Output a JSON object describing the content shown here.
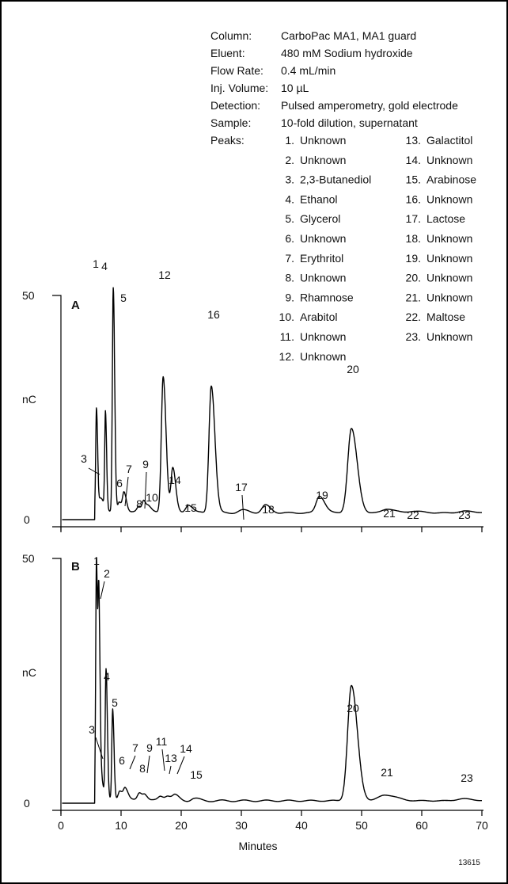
{
  "conditions": [
    {
      "label": "Column:",
      "value": "CarboPac MA1, MA1 guard"
    },
    {
      "label": "Eluent:",
      "value": "480 mM Sodium hydroxide"
    },
    {
      "label": "Flow Rate:",
      "value": "0.4 mL/min"
    },
    {
      "label": "Inj. Volume:",
      "value": "10 µL"
    },
    {
      "label": "Detection:",
      "value": "Pulsed amperometry, gold electrode"
    },
    {
      "label": "Sample:",
      "value": "10-fold dilution, supernatant"
    }
  ],
  "peaks_label": "Peaks:",
  "peaks": [
    {
      "n": "1.",
      "name": "Unknown"
    },
    {
      "n": "2.",
      "name": "Unknown"
    },
    {
      "n": "3.",
      "name": "2,3-Butanediol"
    },
    {
      "n": "4.",
      "name": "Ethanol"
    },
    {
      "n": "5.",
      "name": "Glycerol"
    },
    {
      "n": "6.",
      "name": "Unknown"
    },
    {
      "n": "7.",
      "name": "Erythritol"
    },
    {
      "n": "8.",
      "name": "Unknown"
    },
    {
      "n": "9.",
      "name": "Rhamnose"
    },
    {
      "n": "10.",
      "name": "Arabitol"
    },
    {
      "n": "11.",
      "name": "Unknown"
    },
    {
      "n": "12.",
      "name": "Unknown"
    },
    {
      "n": "13.",
      "name": "Galactitol"
    },
    {
      "n": "14.",
      "name": "Unknown"
    },
    {
      "n": "15.",
      "name": "Arabinose"
    },
    {
      "n": "16.",
      "name": "Unknown"
    },
    {
      "n": "17.",
      "name": "Lactose"
    },
    {
      "n": "18.",
      "name": "Unknown"
    },
    {
      "n": "19.",
      "name": "Unknown"
    },
    {
      "n": "20.",
      "name": "Unknown"
    },
    {
      "n": "21.",
      "name": "Unknown"
    },
    {
      "n": "22.",
      "name": "Maltose"
    },
    {
      "n": "23.",
      "name": "Unknown"
    }
  ],
  "figure_id": "13615",
  "chart_data": [
    {
      "type": "line",
      "panel": "A",
      "xlabel": "Minutes",
      "ylabel": "nC",
      "xlim": [
        0,
        70
      ],
      "ylim": [
        0,
        50
      ],
      "x_ticks": [
        "0",
        "10",
        "20",
        "30",
        "40",
        "50",
        "60",
        "70"
      ],
      "y_ticks": [
        "0",
        "50"
      ],
      "baseline": 1.5,
      "series": [
        {
          "peaks": [
            {
              "label": "1",
              "rt": 5.9,
              "height": 22.5,
              "width": 0.12
            },
            {
              "label": "3",
              "rt": 6.6,
              "height": 3.6,
              "width": 0.35
            },
            {
              "label": "4",
              "rt": 7.4,
              "height": 21.5,
              "width": 0.12
            },
            {
              "label": "5",
              "rt": 8.7,
              "height": 50,
              "width": 0.15
            },
            {
              "label": "6",
              "rt": 9.7,
              "height": 2.6,
              "width": 0.25
            },
            {
              "label": "7",
              "rt": 10.5,
              "height": 4.6,
              "width": 0.25
            },
            {
              "label": "8",
              "rt": 13.0,
              "height": 1.5,
              "width": 0.35
            },
            {
              "label": "9",
              "rt": 13.8,
              "height": 2.5,
              "width": 0.25
            },
            {
              "label": "10",
              "rt": 14.6,
              "height": 1.4,
              "width": 0.3
            },
            {
              "label": "12",
              "rt": 17.0,
              "height": 30.5,
              "width": 0.3
            },
            {
              "label": "14",
              "rt": 18.6,
              "height": 10.0,
              "width": 0.3
            },
            {
              "label": "15",
              "rt": 21.2,
              "height": 1.9,
              "width": 0.45
            },
            {
              "label": "16",
              "rt": 25.0,
              "height": 28.5,
              "width": 0.38
            },
            {
              "label": "17",
              "rt": 30.2,
              "height": 0.6,
              "width": 0.7
            },
            {
              "label": "18",
              "rt": 34.0,
              "height": 1.7,
              "width": 0.55
            },
            {
              "label": "19",
              "rt": 43.0,
              "height": 3.8,
              "width": 0.55
            },
            {
              "label": "20",
              "rt": 48.3,
              "height": 18.8,
              "width": 0.6
            },
            {
              "label": "21",
              "rt": 54.3,
              "height": 0.9,
              "width": 0.8
            },
            {
              "label": "22",
              "rt": 58.7,
              "height": 0.4,
              "width": 0.9
            },
            {
              "label": "23",
              "rt": 67.2,
              "height": 0.4,
              "width": 1.0
            }
          ]
        }
      ]
    },
    {
      "type": "line",
      "panel": "B",
      "xlabel": "Minutes",
      "ylabel": "nC",
      "xlim": [
        0,
        70
      ],
      "ylim": [
        0,
        50
      ],
      "x_ticks": [
        "0",
        "10",
        "20",
        "30",
        "40",
        "50",
        "60",
        "70"
      ],
      "y_ticks": [
        "0",
        "50"
      ],
      "baseline": 0.5,
      "series": [
        {
          "peaks": [
            {
              "label": "1",
              "rt": 5.9,
              "height": 49,
              "width": 0.12
            },
            {
              "label": "2",
              "rt": 6.3,
              "height": 37,
              "width": 0.12
            },
            {
              "label": "3",
              "rt": 6.6,
              "height": 5.5,
              "width": 0.25
            },
            {
              "label": "4",
              "rt": 7.5,
              "height": 26.5,
              "width": 0.14
            },
            {
              "label": "5",
              "rt": 8.6,
              "height": 18.5,
              "width": 0.14
            },
            {
              "label": "6",
              "rt": 9.8,
              "height": 2.2,
              "width": 0.3
            },
            {
              "label": "7",
              "rt": 10.7,
              "height": 2.5,
              "width": 0.3
            },
            {
              "label": "8",
              "rt": 13.1,
              "height": 1.7,
              "width": 0.35
            },
            {
              "label": "9",
              "rt": 14.0,
              "height": 1.1,
              "width": 0.3
            },
            {
              "label": "11",
              "rt": 16.6,
              "height": 0.9,
              "width": 0.4
            },
            {
              "label": "13",
              "rt": 17.8,
              "height": 1.0,
              "width": 0.4
            },
            {
              "label": "14",
              "rt": 19.0,
              "height": 1.0,
              "width": 0.4
            },
            {
              "label": "15",
              "rt": 22.1,
              "height": 0.5,
              "width": 0.5
            },
            {
              "label": "20",
              "rt": 48.3,
              "height": 23.5,
              "width": 0.62
            },
            {
              "label": "21",
              "rt": 54.0,
              "height": 1.2,
              "width": 1.1
            },
            {
              "label": "23",
              "rt": 66.8,
              "height": 0.4,
              "width": 1.0
            }
          ]
        }
      ]
    }
  ]
}
